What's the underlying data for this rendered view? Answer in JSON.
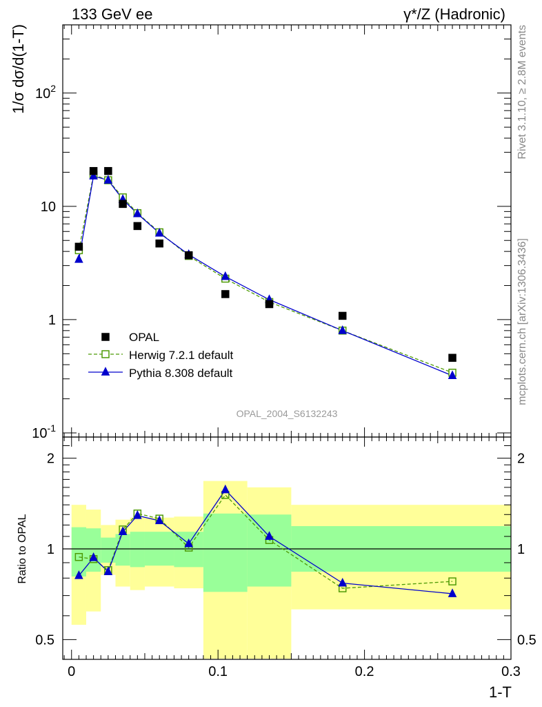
{
  "header": {
    "left": "133 GeV ee",
    "right": "γ*/Z (Hadronic)"
  },
  "side_labels": {
    "rivet": "Rivet 3.1.10, ≥ 2.8M events",
    "mcplots": "mcplots.cern.ch [arXiv:1306.3436]"
  },
  "watermark": "OPAL_2004_S6132243",
  "chart_data": [
    {
      "type": "scatter",
      "panel": "main",
      "ylabel": "1/σ dσ/d(1-T)",
      "yscale": "log",
      "ylim": [
        0.1,
        400
      ],
      "xlim": [
        -0.006,
        0.3
      ],
      "ytick_labels": [
        "10^-1",
        "1",
        "10",
        "10^2"
      ],
      "legend_position": "lower-left",
      "series": [
        {
          "name": "OPAL",
          "marker": "filled-square",
          "color": "#000000",
          "x": [
            0.005,
            0.015,
            0.025,
            0.035,
            0.045,
            0.06,
            0.08,
            0.105,
            0.135,
            0.185,
            0.26
          ],
          "y": [
            4.4,
            20.5,
            20.5,
            10.5,
            6.7,
            4.7,
            3.7,
            1.68,
            1.37,
            1.08,
            0.46
          ]
        },
        {
          "name": "Herwig 7.2.1 default",
          "marker": "open-square",
          "line": "dashed",
          "color": "#4e9a06",
          "x": [
            0.005,
            0.015,
            0.025,
            0.035,
            0.045,
            0.06,
            0.08,
            0.105,
            0.135,
            0.185,
            0.26
          ],
          "y": [
            4.1,
            19.0,
            17.0,
            12.0,
            8.7,
            5.9,
            3.65,
            2.3,
            1.43,
            0.8,
            0.34
          ]
        },
        {
          "name": "Pythia 8.308 default",
          "marker": "filled-triangle",
          "line": "solid",
          "color": "#0000cc",
          "x": [
            0.005,
            0.015,
            0.025,
            0.035,
            0.045,
            0.06,
            0.08,
            0.105,
            0.135,
            0.185,
            0.26
          ],
          "y": [
            3.4,
            18.5,
            17.0,
            11.5,
            8.6,
            5.8,
            3.75,
            2.4,
            1.5,
            0.8,
            0.32
          ]
        }
      ]
    },
    {
      "type": "line",
      "panel": "ratio",
      "xlabel": "1-T",
      "ylabel": "Ratio to OPAL",
      "ylim": [
        0.43,
        2.35
      ],
      "xlim": [
        -0.006,
        0.3
      ],
      "x_ticks": [
        0,
        0.1,
        0.2,
        0.3
      ],
      "x_tick_labels": [
        "0",
        "0.1",
        "0.2",
        "0.3"
      ],
      "y_ticks": [
        0.5,
        1,
        2
      ],
      "y_tick_labels": [
        "0.5",
        "1",
        "2"
      ],
      "bands": {
        "edges": [
          0,
          0.01,
          0.02,
          0.03,
          0.04,
          0.05,
          0.07,
          0.09,
          0.12,
          0.15,
          0.3
        ],
        "yellow_low": [
          0.56,
          0.62,
          0.82,
          0.75,
          0.73,
          0.75,
          0.74,
          0.34,
          0.34,
          0.63
        ],
        "yellow_high": [
          1.4,
          1.35,
          1.2,
          1.25,
          1.27,
          1.27,
          1.28,
          1.68,
          1.6,
          1.4
        ],
        "green_low": [
          0.81,
          0.84,
          0.9,
          0.88,
          0.87,
          0.88,
          0.87,
          0.72,
          0.75,
          0.84
        ],
        "green_high": [
          1.18,
          1.17,
          1.09,
          1.12,
          1.14,
          1.14,
          1.14,
          1.31,
          1.3,
          1.19
        ]
      },
      "series": [
        {
          "name": "Herwig 7.2.1 default",
          "x": [
            0.005,
            0.015,
            0.025,
            0.035,
            0.045,
            0.06,
            0.08,
            0.105,
            0.135,
            0.185,
            0.26
          ],
          "y": [
            0.94,
            0.925,
            0.85,
            1.16,
            1.31,
            1.26,
            1.01,
            1.51,
            1.07,
            0.74,
            0.78
          ]
        },
        {
          "name": "Pythia 8.308 default",
          "x": [
            0.005,
            0.015,
            0.025,
            0.035,
            0.045,
            0.06,
            0.08,
            0.105,
            0.135,
            0.185,
            0.26
          ],
          "y": [
            0.815,
            0.935,
            0.84,
            1.14,
            1.29,
            1.24,
            1.04,
            1.57,
            1.1,
            0.77,
            0.71
          ]
        }
      ]
    }
  ]
}
